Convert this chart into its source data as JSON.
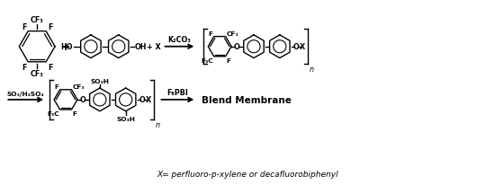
{
  "background_color": "#ffffff",
  "footnote": "X= perfluoro-p-xylene or decafluorobiphenyl",
  "reaction_label_1": "K₂CO₃",
  "reaction_label_2": "SO₃/H₂SO₄",
  "reaction_label_3": "F₆PBI",
  "product_label": "Blend Membrane"
}
